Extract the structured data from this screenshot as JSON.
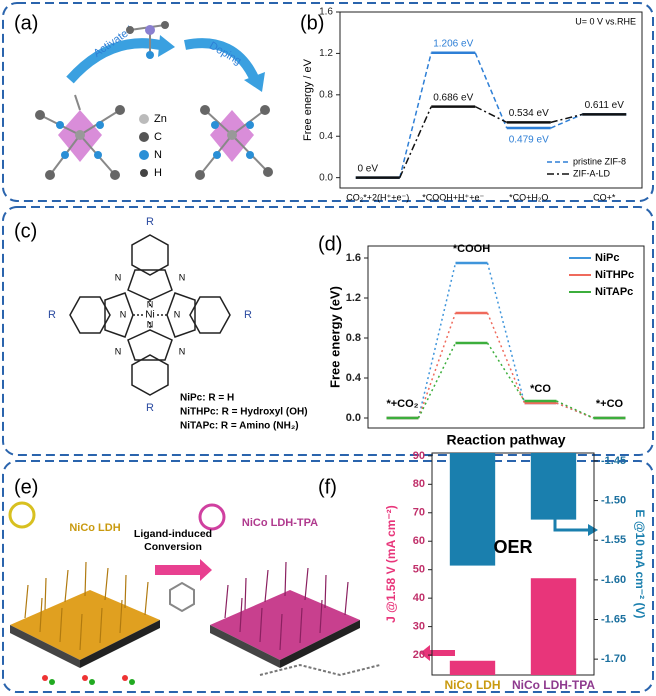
{
  "panel_labels": [
    "(a)",
    "(b)",
    "(c)",
    "(d)",
    "(e)",
    "(f)"
  ],
  "panel_a": {
    "arrow_1": "Activated",
    "arrow_2": "Doping",
    "legend": [
      "Zn",
      "C",
      "N",
      "H"
    ]
  },
  "panel_c": {
    "substituent": "R",
    "nitrogen": "N",
    "metal": "Ni",
    "definitions": [
      "NiPc:      R = H",
      "NiTHPc: R = Hydroxyl (OH)",
      "NiTAPc: R = Amino (NH₂)"
    ]
  },
  "panel_e": {
    "left": "NiCo LDH",
    "arrow": "Ligand-induced Conversion",
    "right": "NiCo LDH-TPA"
  },
  "chart_data": [
    {
      "type": "line",
      "annotation": "U= 0 V vs.RHE",
      "y_label": "Free energy / eV",
      "categories": [
        "CO₂*+2(H⁺+e⁻)",
        "*COOH+H⁺+e⁻",
        "*CO+H₂O",
        "CO+*"
      ],
      "series": [
        {
          "name": "pristine ZIF-8",
          "color": "#2e7fd6",
          "dash": "dashed",
          "values": [
            0,
            1.206,
            0.479,
            0.611
          ],
          "value_labels": [
            null,
            "1.206 eV",
            "0.479 eV",
            null
          ]
        },
        {
          "name": "ZIF-A-LD",
          "color": "#111111",
          "dash": "dashdot",
          "values": [
            0,
            0.686,
            0.534,
            0.611
          ],
          "value_labels": [
            "0 eV",
            "0.686 eV",
            "0.534 eV",
            "0.611 eV"
          ]
        }
      ],
      "ylim": [
        -0.1,
        1.6
      ],
      "yticks": [
        {
          "value": 0,
          "label": "0.0"
        },
        0.4,
        0.8,
        1.2,
        1.6
      ],
      "legend": "lower right"
    },
    {
      "type": "line",
      "y_label": "Free energy (eV)",
      "x_label": "Reaction pathway",
      "categories": [
        "*+CO₂",
        "*COOH",
        "*CO",
        "*+CO"
      ],
      "series": [
        {
          "name": "NiPc",
          "color": "#3f95db",
          "dash": "dotted",
          "values": [
            0,
            1.55,
            0.15,
            0
          ]
        },
        {
          "name": "NiTHPc",
          "color": "#ef6a5c",
          "dash": "dotted",
          "values": [
            0,
            1.05,
            0.15,
            0
          ]
        },
        {
          "name": "NiTAPc",
          "color": "#3cae3c",
          "dash": "dotted",
          "values": [
            0,
            0.75,
            0.17,
            0
          ]
        }
      ],
      "ylim": [
        -0.1,
        1.72
      ],
      "yticks": [
        {
          "value": 0,
          "label": "0.0"
        },
        0.4,
        0.8,
        1.2,
        1.6
      ],
      "legend": "upper right"
    },
    {
      "type": "bar",
      "annotation": "OER",
      "categories": [
        "NiCo LDH",
        "NiCo LDH-TPA"
      ],
      "series": [
        {
          "name": "J @1.58 V (mA cm⁻²)",
          "color": "#e8357a",
          "values": [
            18,
            47
          ]
        },
        {
          "name": "E @10 mA cm⁻² (V)",
          "color": "#1a7fae",
          "axis": "y2",
          "values": [
            -1.582,
            -1.524
          ]
        }
      ],
      "ylim": [
        13,
        91
      ],
      "yticks": [
        20,
        30,
        40,
        50,
        60,
        70,
        80,
        90
      ],
      "y2lim": [
        -1.72,
        -1.44
      ],
      "y2ticks": [
        {
          "value": -1.45,
          "label": "-1.45"
        },
        {
          "value": -1.5,
          "label": "-1.50"
        },
        {
          "value": -1.55,
          "label": "-1.55"
        },
        {
          "value": -1.6,
          "label": "-1.60"
        },
        {
          "value": -1.65,
          "label": "-1.65"
        },
        {
          "value": -1.7,
          "label": "-1.70"
        }
      ]
    }
  ]
}
